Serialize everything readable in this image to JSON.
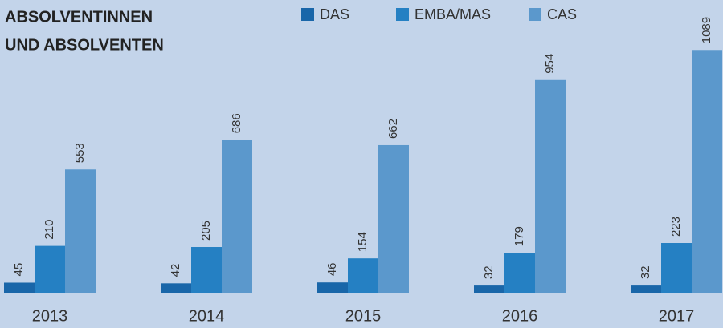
{
  "chart_data": {
    "type": "bar",
    "title": [
      "ABSOLVENTINNEN",
      "UND ABSOLVENTEN"
    ],
    "categories": [
      "2013",
      "2014",
      "2015",
      "2016",
      "2017"
    ],
    "series": [
      {
        "name": "DAS",
        "color": "#1966a9",
        "values": [
          45,
          42,
          46,
          32,
          32
        ]
      },
      {
        "name": "EMBA/MAS",
        "color": "#2580c3",
        "values": [
          210,
          205,
          154,
          179,
          223
        ]
      },
      {
        "name": "CAS",
        "color": "#5b98cc",
        "values": [
          553,
          686,
          662,
          954,
          1089
        ]
      }
    ]
  }
}
